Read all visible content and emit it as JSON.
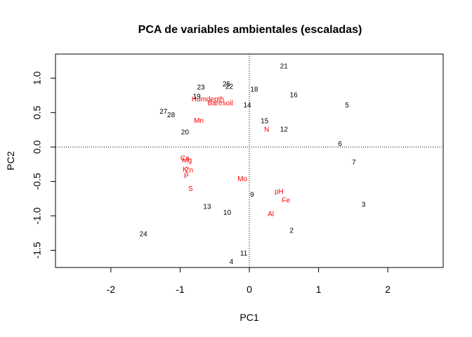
{
  "chart_data": {
    "type": "scatter",
    "title": "PCA de variables ambientales (escaladas)",
    "xlabel": "PC1",
    "ylabel": "PC2",
    "xlim": [
      -2.8,
      2.8
    ],
    "ylim": [
      -1.75,
      1.35
    ],
    "xticks": [
      -2,
      -1,
      0,
      1,
      2
    ],
    "yticks": [
      -1.5,
      -1.0,
      -0.5,
      0.0,
      0.5,
      1.0
    ],
    "xtick_labels": [
      "-2",
      "-1",
      "0",
      "1",
      "2"
    ],
    "ytick_labels": [
      "-1.5",
      "-1.0",
      "-0.5",
      "0.0",
      "0.5",
      "1.0"
    ],
    "reference_lines": {
      "x": 0,
      "y": 0,
      "style": "dotted"
    },
    "grid": false,
    "series": [
      {
        "color": "#000000",
        "points": [
          {
            "label": "21",
            "x": 0.5,
            "y": 1.17
          },
          {
            "label": "25",
            "x": -0.33,
            "y": 0.91
          },
          {
            "label": "22",
            "x": -0.29,
            "y": 0.87
          },
          {
            "label": "23",
            "x": -0.7,
            "y": 0.86
          },
          {
            "label": "18",
            "x": 0.07,
            "y": 0.83
          },
          {
            "label": "16",
            "x": 0.64,
            "y": 0.75
          },
          {
            "label": "19",
            "x": -0.76,
            "y": 0.73
          },
          {
            "label": "5",
            "x": 1.41,
            "y": 0.6
          },
          {
            "label": "14",
            "x": -0.03,
            "y": 0.6
          },
          {
            "label": "27",
            "x": -1.24,
            "y": 0.51
          },
          {
            "label": "28",
            "x": -1.13,
            "y": 0.46
          },
          {
            "label": "15",
            "x": 0.22,
            "y": 0.37
          },
          {
            "label": "12",
            "x": 0.5,
            "y": 0.25
          },
          {
            "label": "20",
            "x": -0.93,
            "y": 0.21
          },
          {
            "label": "6",
            "x": 1.31,
            "y": 0.04
          },
          {
            "label": "7",
            "x": 1.51,
            "y": -0.23
          },
          {
            "label": "9",
            "x": 0.04,
            "y": -0.7
          },
          {
            "label": "3",
            "x": 1.65,
            "y": -0.84
          },
          {
            "label": "13",
            "x": -0.61,
            "y": -0.87
          },
          {
            "label": "10",
            "x": -0.32,
            "y": -0.96
          },
          {
            "label": "2",
            "x": 0.61,
            "y": -1.22
          },
          {
            "label": "24",
            "x": -1.53,
            "y": -1.27
          },
          {
            "label": "11",
            "x": -0.08,
            "y": -1.55
          },
          {
            "label": "4",
            "x": -0.26,
            "y": -1.67
          }
        ]
      },
      {
        "color": "#ff0000",
        "points": [
          {
            "label": "Humdepth",
            "x": -0.6,
            "y": 0.69
          },
          {
            "label": "Baresoil",
            "x": -0.42,
            "y": 0.63
          },
          {
            "label": "Mn",
            "x": -0.73,
            "y": 0.38
          },
          {
            "label": "N",
            "x": 0.25,
            "y": 0.25
          },
          {
            "label": "Ca",
            "x": -0.93,
            "y": -0.17
          },
          {
            "label": "Mg",
            "x": -0.9,
            "y": -0.2
          },
          {
            "label": "K",
            "x": -0.93,
            "y": -0.33
          },
          {
            "label": "Zn",
            "x": -0.87,
            "y": -0.34
          },
          {
            "label": "P",
            "x": -0.91,
            "y": -0.43
          },
          {
            "label": "Mo",
            "x": -0.1,
            "y": -0.47
          },
          {
            "label": "S",
            "x": -0.85,
            "y": -0.61
          },
          {
            "label": "pH",
            "x": 0.43,
            "y": -0.65
          },
          {
            "label": "Fe",
            "x": 0.53,
            "y": -0.78
          },
          {
            "label": "Al",
            "x": 0.31,
            "y": -0.98
          }
        ]
      }
    ]
  }
}
